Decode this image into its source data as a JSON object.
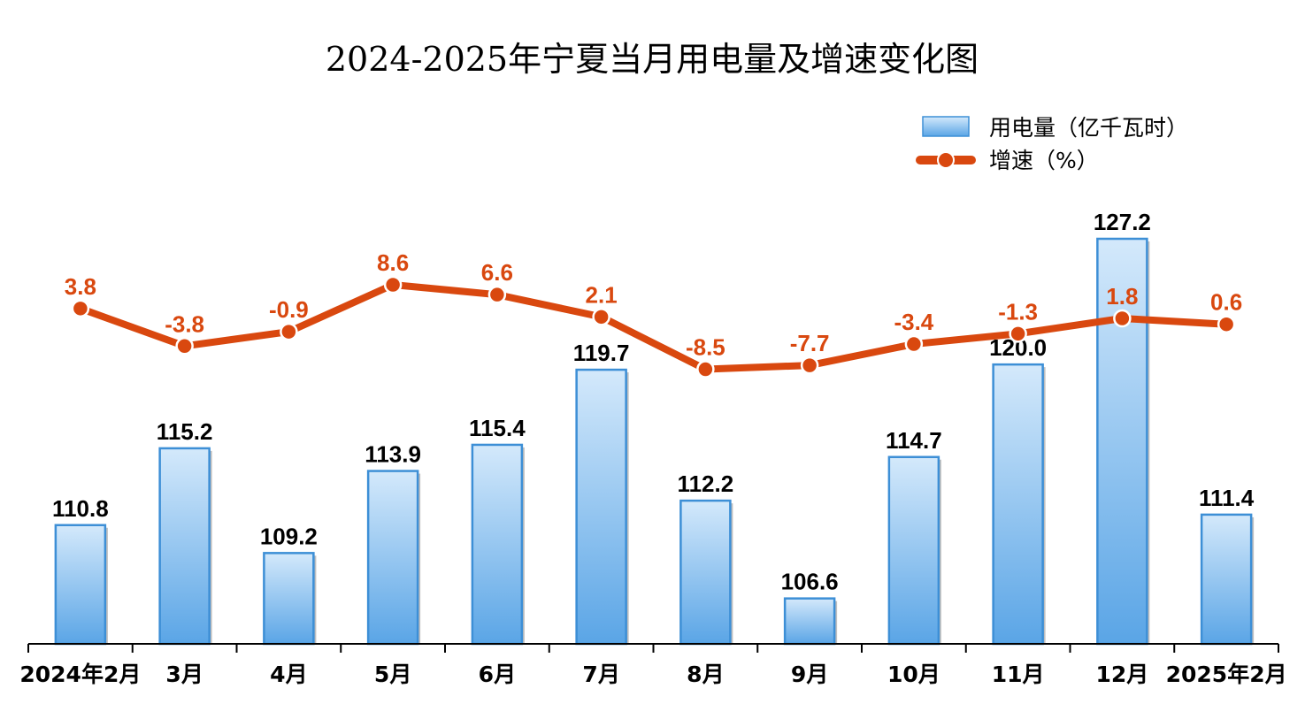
{
  "chart_data": {
    "type": "bar",
    "title": "2024-2025年宁夏当月用电量及增速变化图",
    "categories": [
      "2024年2月",
      "3月",
      "4月",
      "5月",
      "6月",
      "7月",
      "8月",
      "9月",
      "10月",
      "11月",
      "12月",
      "2025年2月"
    ],
    "series": [
      {
        "name": "用电量（亿千瓦时）",
        "type": "bar",
        "color": "#5aa5e6",
        "values": [
          110.8,
          115.2,
          109.2,
          113.9,
          115.4,
          119.7,
          112.2,
          106.6,
          114.7,
          120.0,
          127.2,
          111.4
        ],
        "labels": [
          "110.8",
          "115.2",
          "109.2",
          "113.9",
          "115.4",
          "119.7",
          "112.2",
          "106.6",
          "114.7",
          "120.0",
          "127.2",
          "111.4"
        ]
      },
      {
        "name": "增速（%）",
        "type": "line",
        "color": "#d9480f",
        "values": [
          3.8,
          -3.8,
          -0.9,
          8.6,
          6.6,
          2.1,
          -8.5,
          -7.7,
          -3.4,
          -1.3,
          1.8,
          0.6
        ],
        "labels": [
          "3.8",
          "-3.8",
          "-0.9",
          "8.6",
          "6.6",
          "2.1",
          "-8.5",
          "-7.7",
          "-3.4",
          "-1.3",
          "1.8",
          "0.6"
        ]
      }
    ],
    "bar_axis_range": [
      104,
      130
    ],
    "line_axis_range": [
      -19,
      14
    ],
    "grid": false,
    "legend_position": "top-right"
  }
}
